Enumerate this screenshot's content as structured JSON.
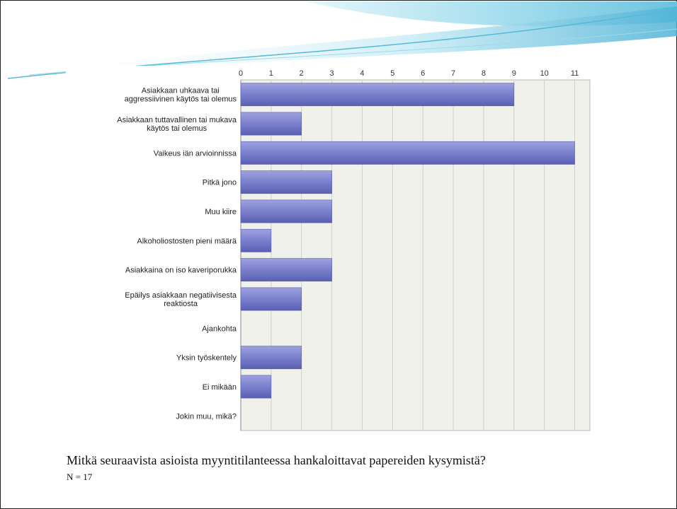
{
  "slide": {
    "caption": "Mitkä seuraavista asioista myyntitilanteessa hankaloittavat papereiden kysymistä?",
    "n_label": "N = 17"
  },
  "colors": {
    "bar": "#7b7fcc",
    "bar_dark": "#5a5fb2",
    "plot_bg": "#eff1ea",
    "grid": "#cfd2c8",
    "wave": "#8fd3e8"
  },
  "chart_data": {
    "type": "bar",
    "orientation": "horizontal",
    "title": "",
    "xlabel": "",
    "ylabel": "",
    "xlim": [
      0,
      11.5
    ],
    "x_ticks": [
      0,
      1,
      2,
      3,
      4,
      5,
      6,
      7,
      8,
      9,
      10,
      11
    ],
    "grid": true,
    "legend": "none",
    "categories": [
      [
        "Asiakkaan uhkaava tai",
        "aggressiivinen käytös tai olemus"
      ],
      [
        "Asiakkaan tuttavallinen tai mukava",
        "käytös tai olemus"
      ],
      [
        "Vaikeus iän arvioinnissa"
      ],
      [
        "Pitkä jono"
      ],
      [
        "Muu kiire"
      ],
      [
        "Alkoholiostosten pieni määrä"
      ],
      [
        "Asiakkaina on iso kaveriporukka"
      ],
      [
        "Epäilys asiakkaan negatiivisesta",
        "reaktiosta"
      ],
      [
        "Ajankohta"
      ],
      [
        "Yksin työskentely"
      ],
      [
        "Ei mikään"
      ],
      [
        "Jokin muu, mikä?"
      ]
    ],
    "values": [
      9,
      2,
      11,
      3,
      3,
      1,
      3,
      2,
      0,
      2,
      1,
      0
    ]
  }
}
